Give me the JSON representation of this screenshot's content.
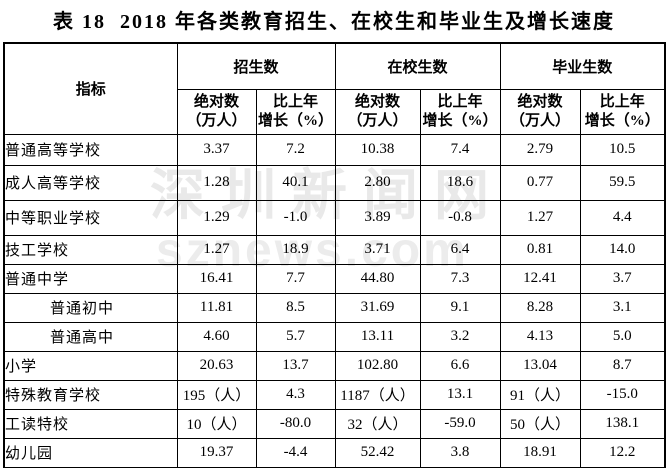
{
  "title": {
    "prefix": "表 18",
    "main": "2018 年各类教育招生、在校生和毕业生及增长速度"
  },
  "watermark": {
    "line1": "深圳新闻网",
    "line2": "sznews.com"
  },
  "colors": {
    "text": "#000000",
    "background": "#ffffff",
    "watermark_gray": "#e9e9e9"
  },
  "table": {
    "indicator_header": "指标",
    "groups": [
      {
        "label": "招生数"
      },
      {
        "label": "在校生数"
      },
      {
        "label": "毕业生数"
      }
    ],
    "sub_headers": {
      "absolute": [
        "绝对数",
        "（万人）"
      ],
      "growth": [
        "比上年",
        "增长（%）"
      ]
    },
    "rows": [
      {
        "label": "普通高等学校",
        "indent": false,
        "values": [
          "3.37",
          "7.2",
          "10.38",
          "7.4",
          "2.79",
          "10.5"
        ]
      },
      {
        "label": "成人高等学校",
        "indent": false,
        "values": [
          "1.28",
          "40.1",
          "2.80",
          "18.6",
          "0.77",
          "59.5"
        ]
      },
      {
        "label": "中等职业学校",
        "indent": false,
        "values": [
          "1.29",
          "-1.0",
          "3.89",
          "-0.8",
          "1.27",
          "4.4"
        ]
      },
      {
        "label": "技工学校",
        "indent": false,
        "values": [
          "1.27",
          "18.9",
          "3.71",
          "6.4",
          "0.81",
          "14.0"
        ]
      },
      {
        "label": "普通中学",
        "indent": false,
        "values": [
          "16.41",
          "7.7",
          "44.80",
          "7.3",
          "12.41",
          "3.7"
        ]
      },
      {
        "label": "普通初中",
        "indent": true,
        "values": [
          "11.81",
          "8.5",
          "31.69",
          "9.1",
          "8.28",
          "3.1"
        ]
      },
      {
        "label": "普通高中",
        "indent": true,
        "values": [
          "4.60",
          "5.7",
          "13.11",
          "3.2",
          "4.13",
          "5.0"
        ]
      },
      {
        "label": "小学",
        "indent": false,
        "values": [
          "20.63",
          "13.7",
          "102.80",
          "6.6",
          "13.04",
          "8.7"
        ]
      },
      {
        "label": "特殊教育学校",
        "indent": false,
        "values": [
          "195（人）",
          "4.3",
          "1187（人）",
          "13.1",
          "91（人）",
          "-15.0"
        ]
      },
      {
        "label": "工读特校",
        "indent": false,
        "values": [
          "10（人）",
          "-80.0",
          "32（人）",
          "-59.0",
          "50（人）",
          "138.1"
        ]
      },
      {
        "label": "幼儿园",
        "indent": false,
        "values": [
          "19.37",
          "-4.4",
          "52.42",
          "3.8",
          "18.91",
          "12.2"
        ]
      }
    ]
  }
}
